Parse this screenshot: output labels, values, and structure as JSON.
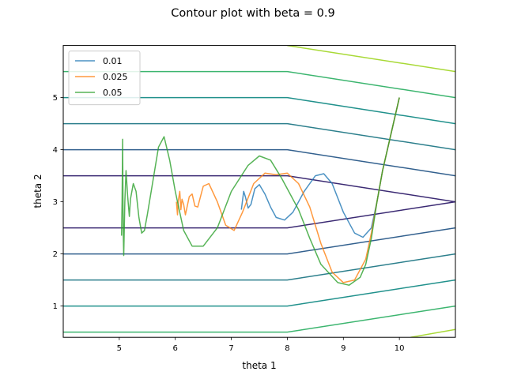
{
  "chart_data": {
    "type": "line",
    "title": "Contour plot with beta = 0.9",
    "xlabel": "theta 1",
    "ylabel": "theta 2",
    "xlim": [
      4.0,
      11.0
    ],
    "ylim": [
      0.4,
      6.0
    ],
    "xticks": [
      "5",
      "6",
      "7",
      "8",
      "9",
      "10"
    ],
    "yticks": [
      "1",
      "2",
      "3",
      "4",
      "5"
    ],
    "grid": false,
    "legend": {
      "placement": "top-left",
      "entries": [
        "0.01",
        "0.025",
        "0.05"
      ]
    },
    "contours": {
      "colors": [
        "#3b2a73",
        "#32608e",
        "#21918c",
        "#2ba877",
        "#5ac864",
        "#a8d936"
      ],
      "lines": [
        {
          "points": [
            [
              4.0,
              3.5
            ],
            [
              8.0,
              3.5
            ],
            [
              11.0,
              3.0
            ]
          ],
          "color": "#3b2a73"
        },
        {
          "points": [
            [
              4.0,
              2.5
            ],
            [
              8.0,
              2.5
            ],
            [
              11.0,
              3.0
            ]
          ],
          "color": "#3b2a73"
        },
        {
          "points": [
            [
              4.0,
              4.0
            ],
            [
              8.0,
              4.0
            ],
            [
              11.0,
              3.5
            ]
          ],
          "color": "#32608e"
        },
        {
          "points": [
            [
              4.0,
              2.0
            ],
            [
              8.0,
              2.0
            ],
            [
              11.0,
              2.5
            ]
          ],
          "color": "#32608e"
        },
        {
          "points": [
            [
              4.0,
              4.5
            ],
            [
              8.0,
              4.5
            ],
            [
              11.0,
              4.0
            ]
          ],
          "color": "#2c7f8c"
        },
        {
          "points": [
            [
              4.0,
              1.5
            ],
            [
              8.0,
              1.5
            ],
            [
              11.0,
              2.0
            ]
          ],
          "color": "#2c7f8c"
        },
        {
          "points": [
            [
              4.0,
              5.0
            ],
            [
              8.0,
              5.0
            ],
            [
              11.0,
              4.5
            ]
          ],
          "color": "#21918c"
        },
        {
          "points": [
            [
              4.0,
              1.0
            ],
            [
              8.0,
              1.0
            ],
            [
              11.0,
              1.5
            ]
          ],
          "color": "#21918c"
        },
        {
          "points": [
            [
              4.0,
              5.5
            ],
            [
              8.0,
              5.5
            ],
            [
              11.0,
              5.0
            ]
          ],
          "color": "#3cb56f"
        },
        {
          "points": [
            [
              4.0,
              0.5
            ],
            [
              8.0,
              0.5
            ],
            [
              11.0,
              1.0
            ]
          ],
          "color": "#3cb56f"
        },
        {
          "points": [
            [
              8.0,
              6.0
            ],
            [
              11.0,
              5.5
            ]
          ],
          "color": "#a8d936"
        },
        {
          "points": [
            [
              10.2,
              0.4
            ],
            [
              11.0,
              0.55
            ]
          ],
          "color": "#a8d936"
        }
      ]
    },
    "series": [
      {
        "name": "0.01",
        "color": "#1f77b4",
        "points": [
          [
            10.0,
            5.0
          ],
          [
            9.85,
            4.3
          ],
          [
            9.7,
            3.6
          ],
          [
            9.6,
            3.0
          ],
          [
            9.5,
            2.5
          ],
          [
            9.35,
            2.32
          ],
          [
            9.2,
            2.4
          ],
          [
            9.0,
            2.8
          ],
          [
            8.8,
            3.35
          ],
          [
            8.65,
            3.54
          ],
          [
            8.5,
            3.5
          ],
          [
            8.3,
            3.2
          ],
          [
            8.1,
            2.8
          ],
          [
            7.95,
            2.65
          ],
          [
            7.8,
            2.7
          ],
          [
            7.7,
            2.9
          ],
          [
            7.6,
            3.15
          ],
          [
            7.5,
            3.33
          ],
          [
            7.42,
            3.25
          ],
          [
            7.35,
            2.95
          ],
          [
            7.3,
            2.88
          ],
          [
            7.25,
            3.1
          ],
          [
            7.22,
            3.2
          ],
          [
            7.18,
            2.85
          ]
        ]
      },
      {
        "name": "0.025",
        "color": "#ff7f0e",
        "points": [
          [
            10.0,
            5.0
          ],
          [
            9.85,
            4.3
          ],
          [
            9.7,
            3.6
          ],
          [
            9.6,
            3.0
          ],
          [
            9.5,
            2.4
          ],
          [
            9.4,
            1.9
          ],
          [
            9.2,
            1.5
          ],
          [
            9.0,
            1.45
          ],
          [
            8.8,
            1.65
          ],
          [
            8.6,
            2.2
          ],
          [
            8.4,
            2.9
          ],
          [
            8.2,
            3.35
          ],
          [
            8.0,
            3.55
          ],
          [
            7.8,
            3.52
          ],
          [
            7.6,
            3.55
          ],
          [
            7.4,
            3.35
          ],
          [
            7.2,
            2.8
          ],
          [
            7.05,
            2.45
          ],
          [
            6.9,
            2.55
          ],
          [
            6.75,
            3.0
          ],
          [
            6.6,
            3.35
          ],
          [
            6.5,
            3.3
          ],
          [
            6.4,
            2.9
          ],
          [
            6.35,
            2.92
          ],
          [
            6.3,
            3.15
          ],
          [
            6.25,
            3.1
          ],
          [
            6.2,
            2.85
          ],
          [
            6.18,
            2.75
          ],
          [
            6.15,
            2.95
          ],
          [
            6.12,
            3.05
          ],
          [
            6.1,
            2.85
          ],
          [
            6.08,
            3.2
          ],
          [
            6.05,
            3.0
          ],
          [
            6.04,
            2.75
          ],
          [
            6.02,
            3.0
          ]
        ]
      },
      {
        "name": "0.05",
        "color": "#2ca02c",
        "points": [
          [
            10.0,
            5.0
          ],
          [
            9.85,
            4.3
          ],
          [
            9.7,
            3.6
          ],
          [
            9.6,
            3.0
          ],
          [
            9.5,
            2.3
          ],
          [
            9.4,
            1.8
          ],
          [
            9.3,
            1.55
          ],
          [
            9.1,
            1.4
          ],
          [
            8.9,
            1.45
          ],
          [
            8.6,
            1.8
          ],
          [
            8.4,
            2.3
          ],
          [
            8.2,
            2.85
          ],
          [
            7.9,
            3.45
          ],
          [
            7.7,
            3.8
          ],
          [
            7.5,
            3.88
          ],
          [
            7.3,
            3.7
          ],
          [
            7.0,
            3.2
          ],
          [
            6.75,
            2.5
          ],
          [
            6.5,
            2.15
          ],
          [
            6.3,
            2.15
          ],
          [
            6.15,
            2.45
          ],
          [
            6.0,
            3.2
          ],
          [
            5.9,
            3.8
          ],
          [
            5.8,
            4.25
          ],
          [
            5.7,
            4.05
          ],
          [
            5.6,
            3.4
          ],
          [
            5.5,
            2.75
          ],
          [
            5.45,
            2.45
          ],
          [
            5.4,
            2.4
          ],
          [
            5.35,
            2.7
          ],
          [
            5.3,
            3.2
          ],
          [
            5.25,
            3.35
          ],
          [
            5.2,
            3.05
          ],
          [
            5.18,
            2.72
          ],
          [
            5.15,
            3.1
          ],
          [
            5.12,
            3.6
          ],
          [
            5.1,
            3.0
          ],
          [
            5.08,
            1.97
          ],
          [
            5.07,
            2.5
          ],
          [
            5.06,
            4.2
          ],
          [
            5.05,
            3.0
          ],
          [
            5.04,
            2.35
          ]
        ]
      }
    ]
  }
}
